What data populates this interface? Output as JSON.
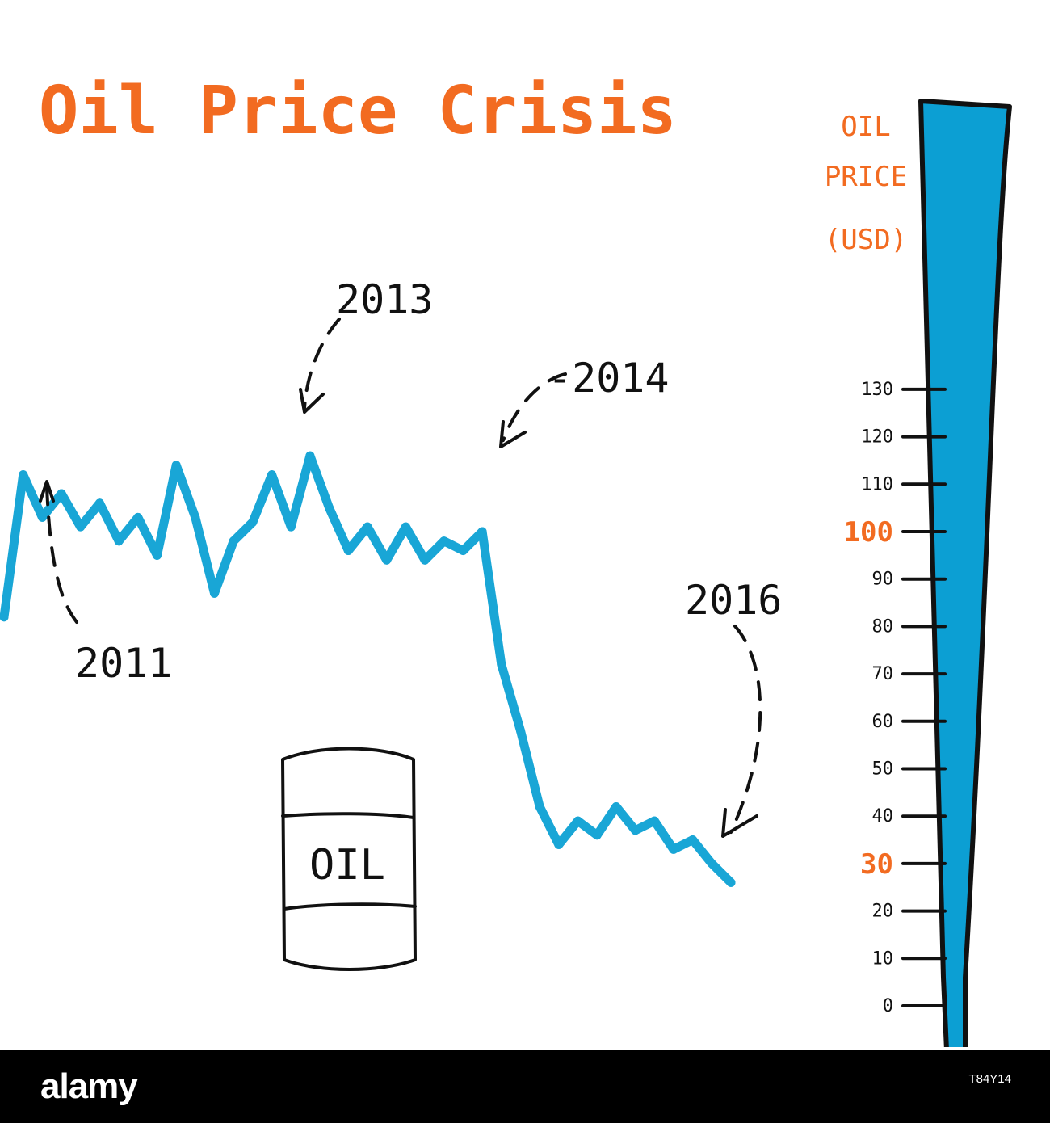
{
  "chart_data": {
    "type": "line",
    "title": "Oil Price Crisis",
    "series": [
      {
        "values": [
          82,
          112,
          103,
          108,
          101,
          106,
          98,
          103,
          95,
          114,
          103,
          87,
          98,
          102,
          112,
          101,
          116,
          105,
          96,
          101,
          94,
          101,
          94,
          98,
          96,
          100,
          72,
          58,
          42,
          34,
          39,
          36,
          42,
          37,
          39,
          33,
          35,
          30,
          26
        ]
      }
    ],
    "annotations": [
      {
        "label": "2011",
        "point_index": 1
      },
      {
        "label": "2013",
        "point_index": 16
      },
      {
        "label": "-2014",
        "point_index": 25
      },
      {
        "label": "2016",
        "point_index": 38
      }
    ]
  },
  "gauge": {
    "title_lines": [
      "OIL",
      "PRICE",
      "(USD)"
    ],
    "ticks": [
      {
        "value": 130,
        "label": "130",
        "highlight": false
      },
      {
        "value": 120,
        "label": "120",
        "highlight": false
      },
      {
        "value": 110,
        "label": "110",
        "highlight": false
      },
      {
        "value": 100,
        "label": "100",
        "highlight": true
      },
      {
        "value": 90,
        "label": "90",
        "highlight": false
      },
      {
        "value": 80,
        "label": "80",
        "highlight": false
      },
      {
        "value": 70,
        "label": "70",
        "highlight": false
      },
      {
        "value": 60,
        "label": "60",
        "highlight": false
      },
      {
        "value": 50,
        "label": "50",
        "highlight": false
      },
      {
        "value": 40,
        "label": "40",
        "highlight": false
      },
      {
        "value": 30,
        "label": "30",
        "highlight": true
      },
      {
        "value": 20,
        "label": "20",
        "highlight": false
      },
      {
        "value": 10,
        "label": "10",
        "highlight": false
      },
      {
        "value": 0,
        "label": "0",
        "highlight": false
      }
    ]
  },
  "barrel": {
    "label": "OIL"
  },
  "footer": {
    "logo_text": "alamy",
    "image_id": "T84Y14"
  },
  "colors": {
    "accent": "#f26b21",
    "line": "#19a6d6",
    "gauge_fill": "#0c9fd3",
    "ink": "#111111"
  }
}
